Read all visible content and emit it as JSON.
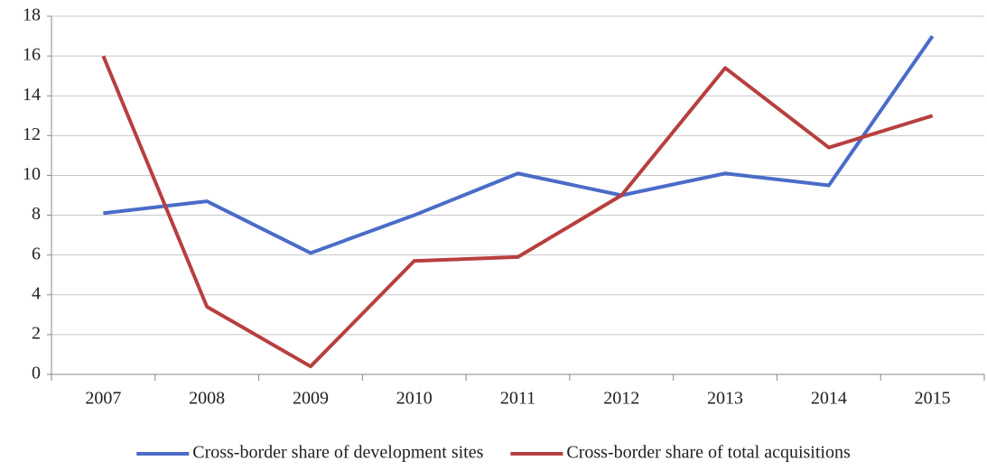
{
  "chart_data": {
    "type": "line",
    "categories": [
      "2007",
      "2008",
      "2009",
      "2010",
      "2011",
      "2012",
      "2013",
      "2014",
      "2015"
    ],
    "series": [
      {
        "name": "Cross-border share of development sites",
        "color": "#4a6cc8",
        "values": [
          8.1,
          8.7,
          6.1,
          8.0,
          10.1,
          9.0,
          10.1,
          9.5,
          17.0
        ]
      },
      {
        "name": "Cross-border share of total acquisitions",
        "color": "#b83f3f",
        "values": [
          16.0,
          3.4,
          0.4,
          5.7,
          5.9,
          9.0,
          15.4,
          11.4,
          13.0
        ]
      }
    ],
    "ylim": [
      0,
      18
    ],
    "yticks": [
      0,
      2,
      4,
      6,
      8,
      10,
      12,
      14,
      16,
      18
    ],
    "grid": true,
    "legend": "bottom"
  }
}
